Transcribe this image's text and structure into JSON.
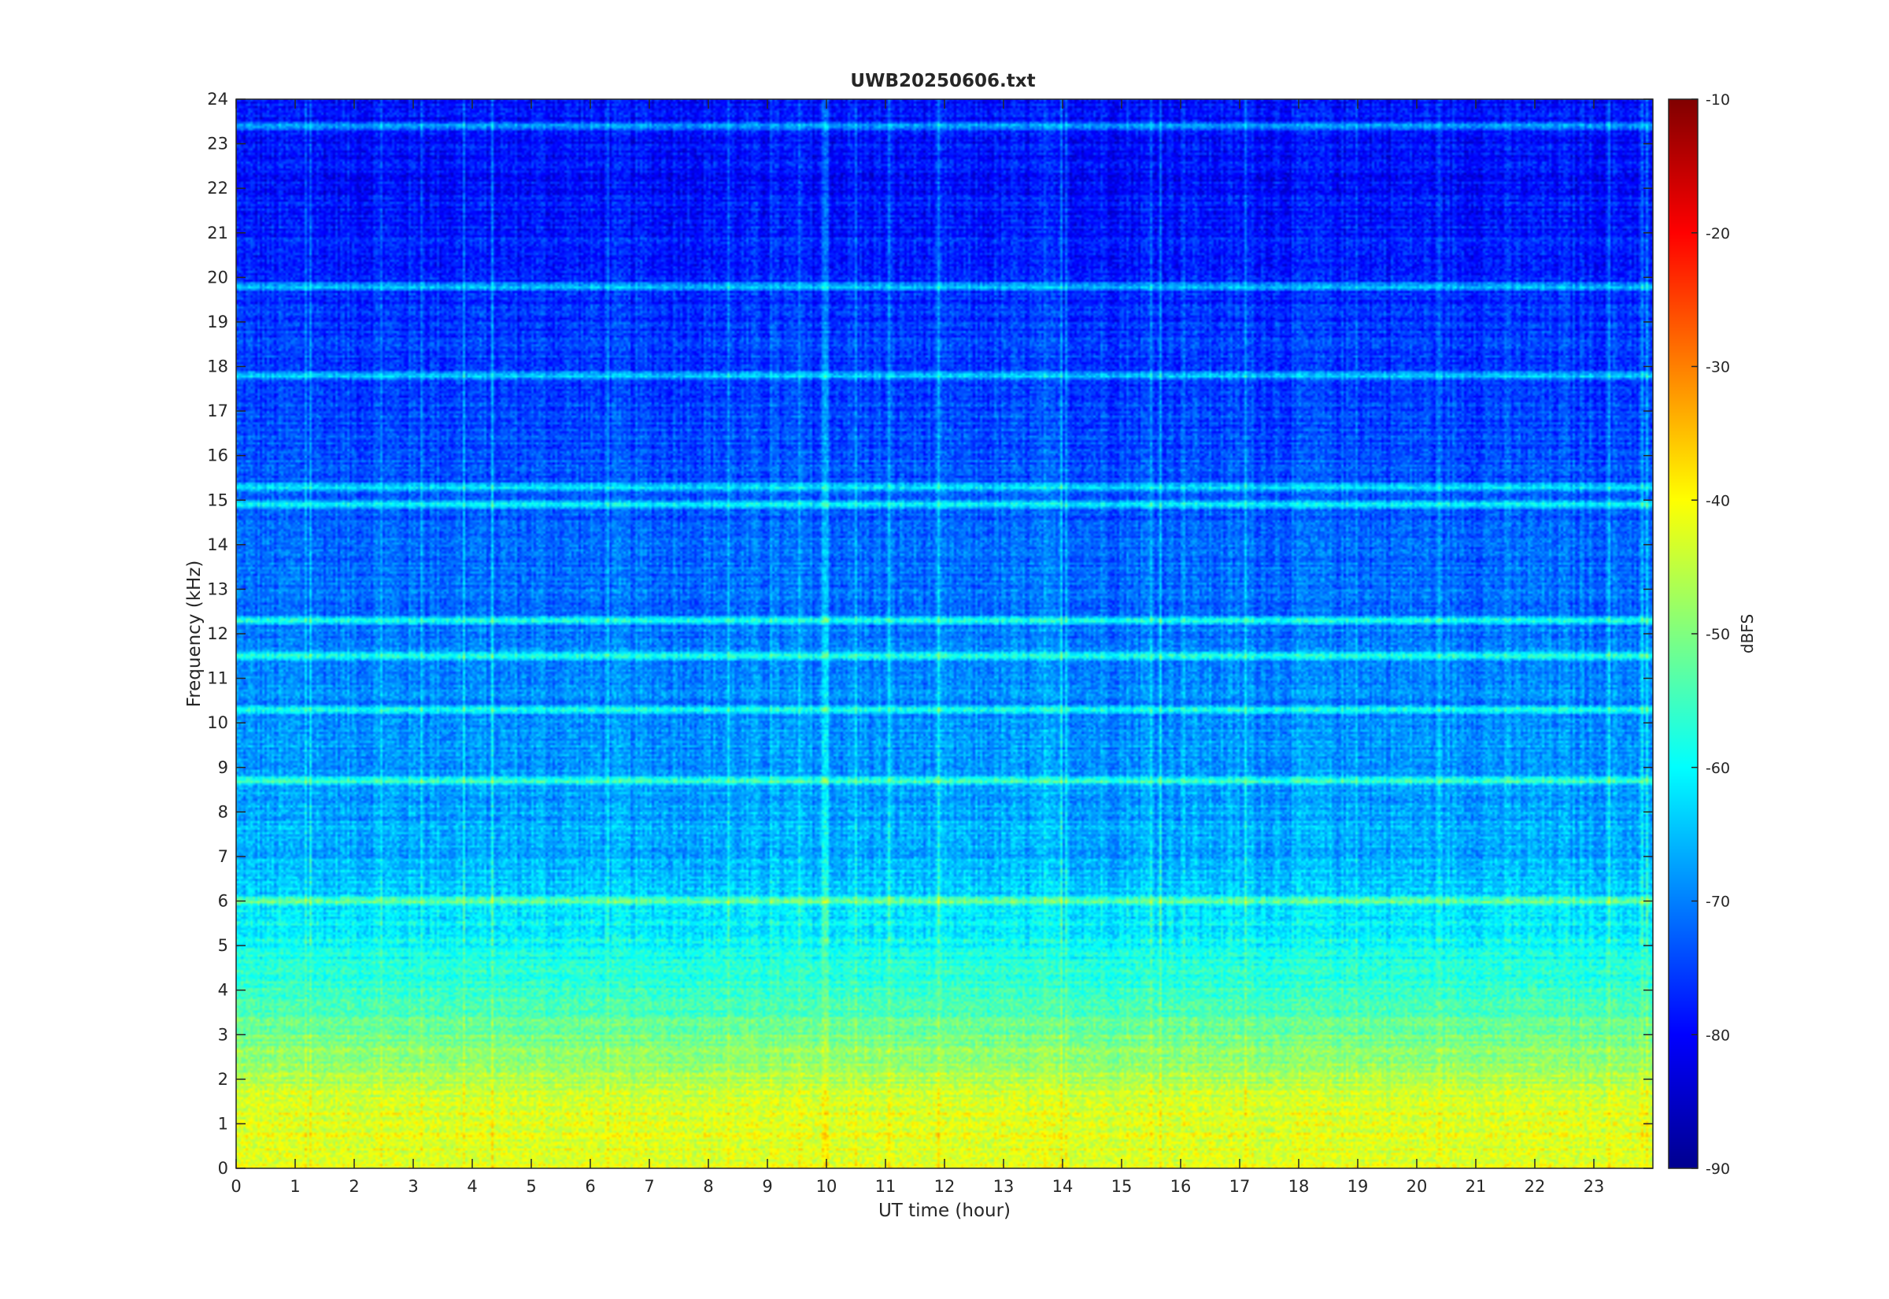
{
  "chart_data": {
    "type": "heatmap",
    "title": "UWB20250606.txt",
    "xlabel": "UT time (hour)",
    "ylabel": "Frequency (kHz)",
    "xlim": [
      0,
      24
    ],
    "ylim": [
      0,
      24
    ],
    "x_ticks": [
      "0",
      "1",
      "2",
      "3",
      "4",
      "5",
      "6",
      "7",
      "8",
      "9",
      "10",
      "11",
      "12",
      "13",
      "14",
      "15",
      "16",
      "17",
      "18",
      "19",
      "20",
      "21",
      "22",
      "23"
    ],
    "y_ticks": [
      "0",
      "1",
      "2",
      "3",
      "4",
      "5",
      "6",
      "7",
      "8",
      "9",
      "10",
      "11",
      "12",
      "13",
      "14",
      "15",
      "16",
      "17",
      "18",
      "19",
      "20",
      "21",
      "22",
      "23",
      "24"
    ],
    "colorbar": {
      "label": "dBFS",
      "colormap": "jet",
      "clim": [
        -90,
        -10
      ],
      "ticks": [
        "-10",
        "-20",
        "-30",
        "-40",
        "-50",
        "-60",
        "-70",
        "-80",
        "-90"
      ]
    },
    "description_bands": [
      {
        "freq_khz": [
          0,
          2.5
        ],
        "level_dbfs": -42
      },
      {
        "freq_khz": [
          2.5,
          5
        ],
        "level_dbfs": -55
      },
      {
        "freq_khz": [
          5,
          9
        ],
        "level_dbfs": -66
      },
      {
        "freq_khz": [
          9,
          21
        ],
        "level_dbfs": -73
      },
      {
        "freq_khz": [
          21,
          24
        ],
        "level_dbfs": -79
      }
    ],
    "persistent_lines_khz": [
      19.8,
      17.8,
      23.4,
      15.3,
      14.9,
      12.3,
      11.5,
      10.3,
      8.7,
      6.0
    ]
  }
}
